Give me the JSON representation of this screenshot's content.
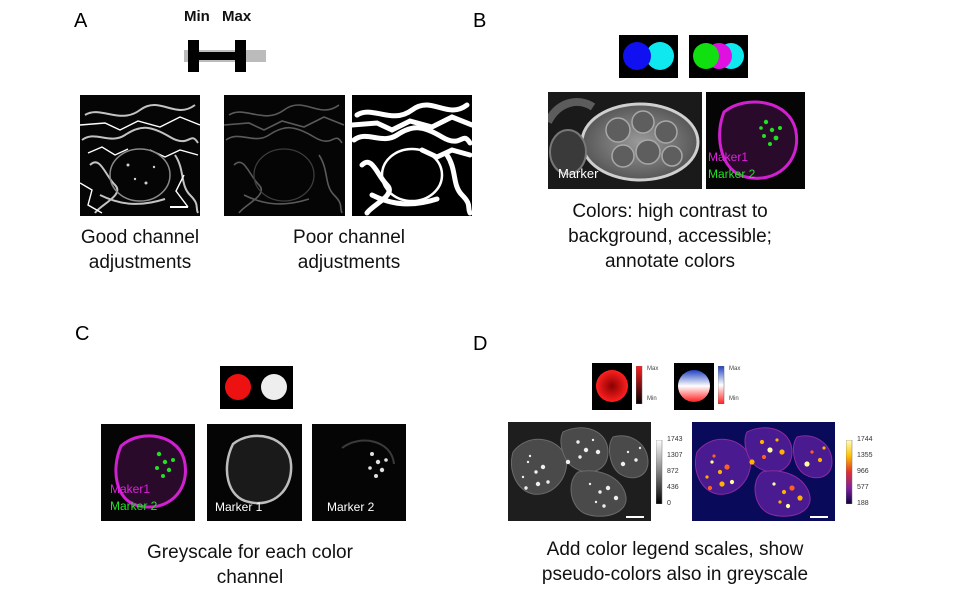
{
  "panel_a": {
    "letter": "A",
    "slider_min_label": "Min",
    "slider_max_label": "Max",
    "caption_good": [
      "Good channel",
      "adjustments"
    ],
    "caption_poor": [
      "Poor  channel",
      "adjustments"
    ]
  },
  "panel_b": {
    "letter": "B",
    "image1_label": "Marker",
    "image2_label1": "Maker1",
    "image2_label2": "Marker 2",
    "caption": [
      "Colors: high contrast to",
      "background, accessible;",
      "annotate colors"
    ],
    "colors": {
      "blue": "#1010f0",
      "cyan": "#10e8f0",
      "green": "#10e010",
      "magenta": "#e010e0"
    }
  },
  "panel_c": {
    "letter": "C",
    "image1_label1": "Maker1",
    "image1_label2": "Marker 2",
    "image2_label": "Marker 1",
    "image3_label": "Marker 2",
    "caption": [
      "Greyscale for each color",
      "channel"
    ],
    "colors": {
      "red": "#ee1111",
      "white": "#eeeeee"
    }
  },
  "panel_d": {
    "letter": "D",
    "legend1": {
      "max": "Max",
      "min": "Min"
    },
    "legend2": {
      "max": "Max",
      "min": "Min"
    },
    "grey_scale_ticks": [
      "1743",
      "1307",
      "872",
      "436",
      "0"
    ],
    "fire_scale_ticks": [
      "1744",
      "1355",
      "966",
      "577",
      "188"
    ],
    "caption": [
      "Add color legend scales, show",
      "pseudo-colors also in greyscale"
    ]
  }
}
